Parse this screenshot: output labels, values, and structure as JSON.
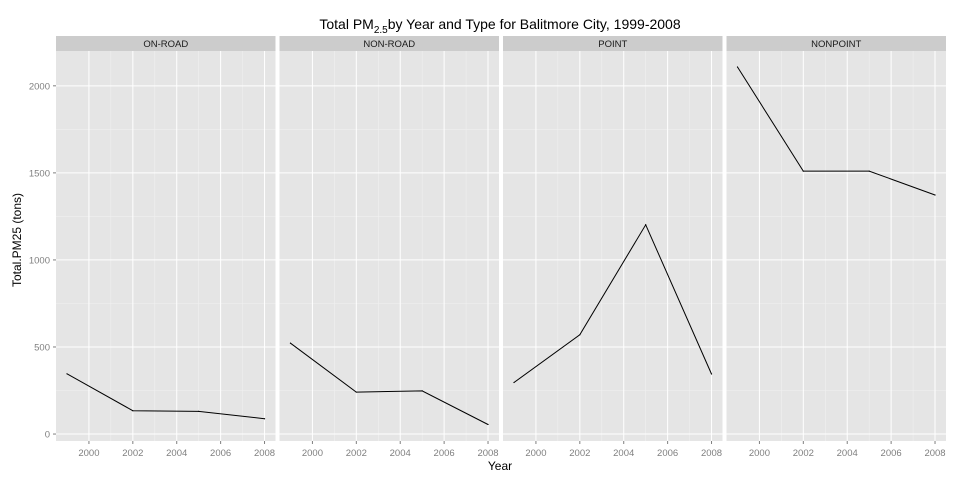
{
  "chart_data": {
    "type": "line",
    "title": {
      "prefix": "Total PM",
      "subscript": "2.5",
      "suffix": "by Year and Type for Balitmore City, 1999-2008"
    },
    "xlabel": "Year",
    "ylabel": "Total.PM25 (tons)",
    "x": [
      1999,
      2002,
      2005,
      2008
    ],
    "xticks": [
      2000,
      2002,
      2004,
      2006,
      2008
    ],
    "xlim": [
      1998.5,
      2008.5
    ],
    "yticks": [
      0,
      500,
      1000,
      1500,
      2000
    ],
    "ylim": [
      -40,
      2200
    ],
    "grid": true,
    "facets": [
      {
        "name": "ON-ROAD",
        "values": [
          346,
          134,
          130,
          88
        ]
      },
      {
        "name": "NON-ROAD",
        "values": [
          522,
          241,
          248,
          55
        ]
      },
      {
        "name": "POINT",
        "values": [
          296,
          570,
          1202,
          345
        ]
      },
      {
        "name": "NONPOINT",
        "values": [
          2108,
          1510,
          1510,
          1373
        ]
      }
    ]
  },
  "colors": {
    "panel_bg": "#e5e5e5",
    "strip_bg": "#cccccc",
    "grid_major": "#ffffff",
    "grid_minor": "#f2f2f2",
    "line": "#000000",
    "tick_text": "#7f7f7f"
  }
}
